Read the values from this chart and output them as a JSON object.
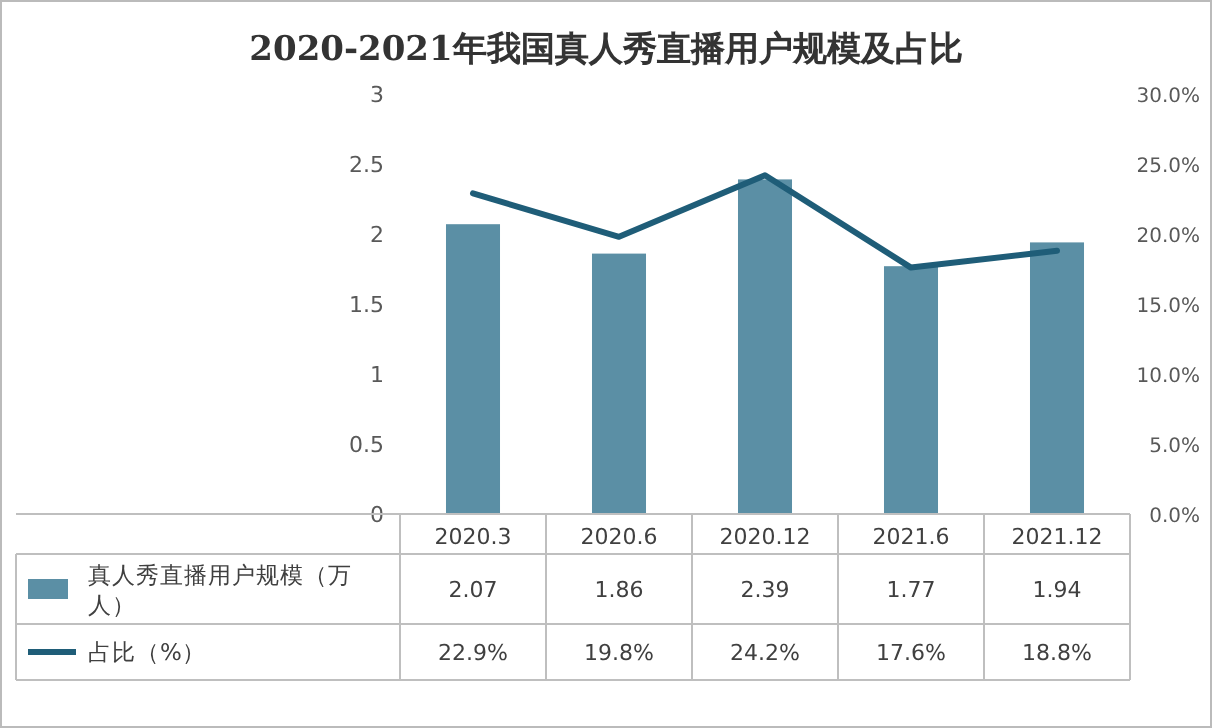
{
  "chart_data": {
    "type": "bar",
    "title": "2020-2021年我国真人秀直播用户规模及占比",
    "categories": [
      "2020.3",
      "2020.6",
      "2020.12",
      "2021.6",
      "2021.12"
    ],
    "series": [
      {
        "name": "真人秀直播用户规模（万人）",
        "color": "#5b8fa5",
        "values": [
          2.07,
          1.86,
          2.39,
          1.77,
          1.94
        ]
      },
      {
        "name": "占比（%）",
        "type": "line",
        "axis": "y2",
        "color": "#1f5d78",
        "values": [
          22.9,
          19.8,
          24.2,
          17.6,
          18.8
        ],
        "value_labels": [
          "22.9%",
          "19.8%",
          "24.2%",
          "17.6%",
          "18.8%"
        ]
      }
    ],
    "ylim": [
      0,
      3
    ],
    "yticks": [
      0,
      0.5,
      1,
      1.5,
      2,
      2.5,
      3
    ],
    "y2lim": [
      0,
      30
    ],
    "y2ticks": [
      {
        "value": 0,
        "label": "0.0%"
      },
      {
        "value": 5,
        "label": "5.0%"
      },
      {
        "value": 10,
        "label": "10.0%"
      },
      {
        "value": 15,
        "label": "15.0%"
      },
      {
        "value": 20,
        "label": "20.0%"
      },
      {
        "value": 25,
        "label": "25.0%"
      },
      {
        "value": 30,
        "label": "30.0%"
      }
    ],
    "data_labels": true,
    "legend": "bottom",
    "grid": false
  }
}
